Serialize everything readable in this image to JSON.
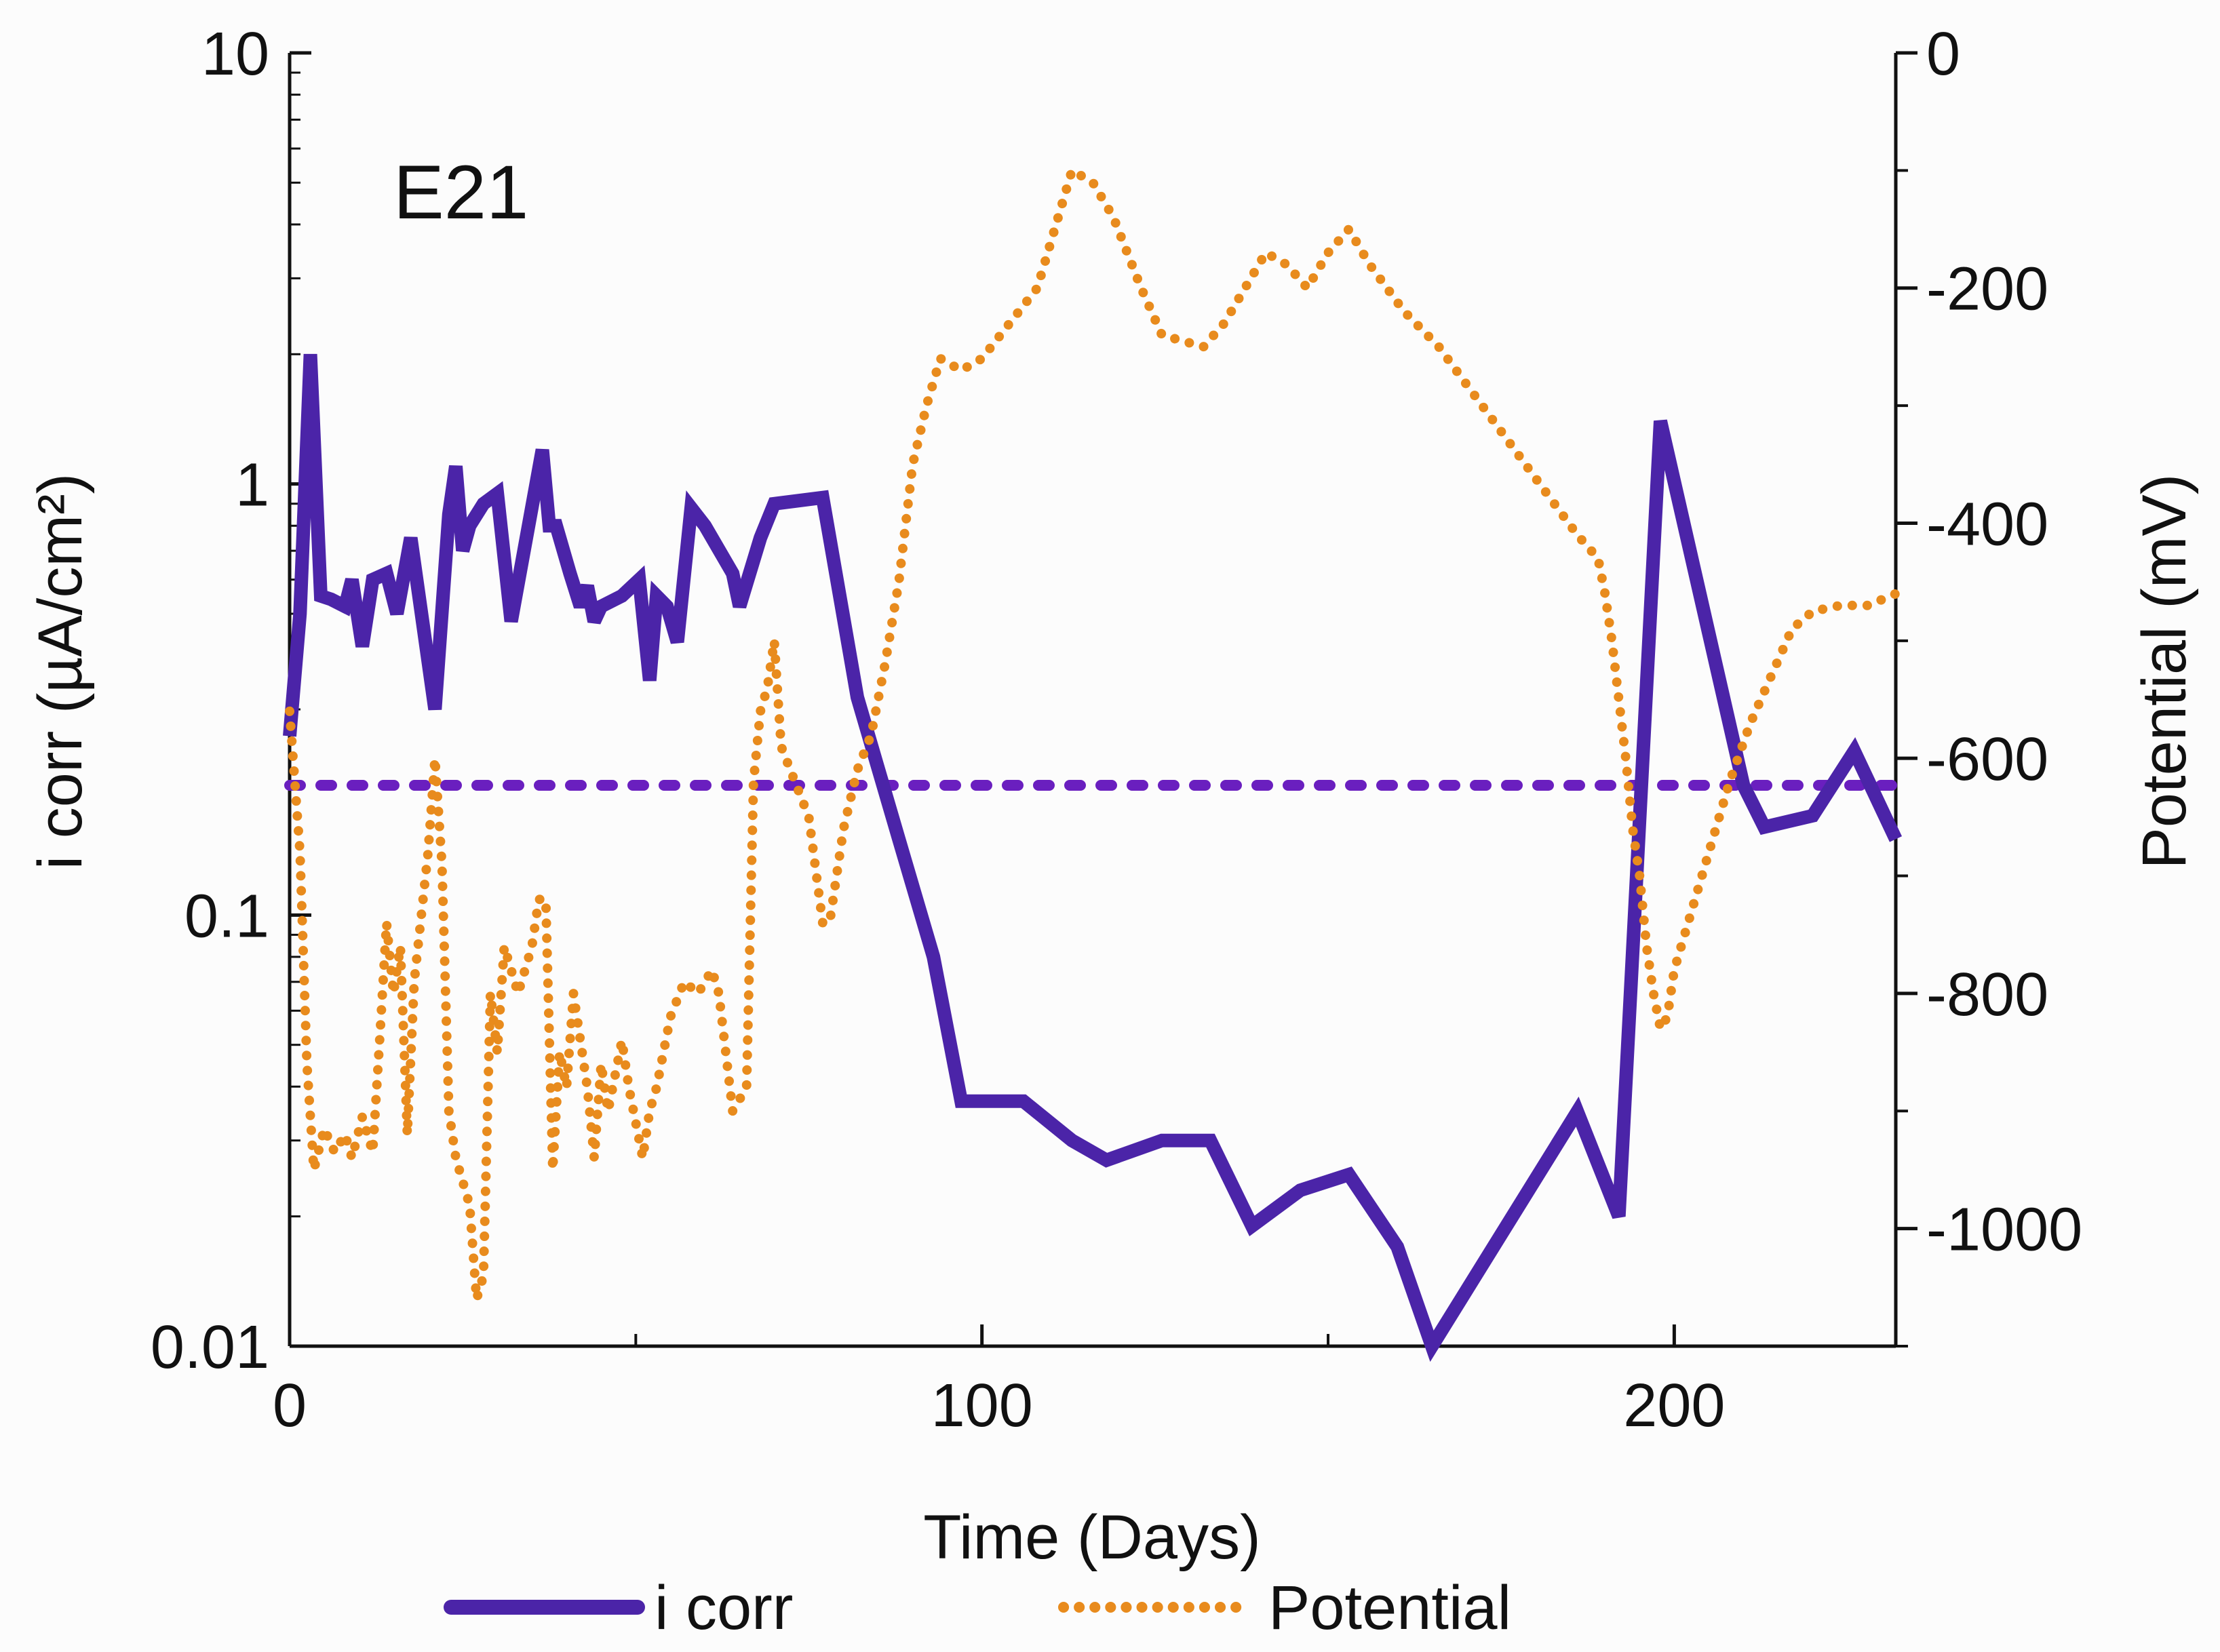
{
  "chart_data": {
    "type": "line",
    "annotation": "E21",
    "xlabel": "Time (Days)",
    "ylabel_left": "i corr (µA/cm²)",
    "ylabel_right": "Potential (mV)",
    "xlim": [
      0,
      232
    ],
    "ylim_left": [
      0.01,
      10
    ],
    "ylim_left_scale": "log",
    "ylim_right": [
      -1100,
      0
    ],
    "x_ticks": [
      0,
      100,
      200
    ],
    "y_left_ticks": [
      {
        "value": 10,
        "label": "10"
      },
      {
        "value": 1,
        "label": "1"
      },
      {
        "value": 0.1,
        "label": "0.1"
      },
      {
        "value": 0.01,
        "label": "0.01"
      }
    ],
    "y_right_ticks": [
      0,
      -200,
      -400,
      -600,
      -800,
      -1000
    ],
    "threshold": {
      "name": "threshold",
      "value": 0.2,
      "color": "#6a1fbf"
    },
    "series": [
      {
        "name": "i corr",
        "axis": "left",
        "color": "#4b24a8",
        "style": "solid",
        "points": [
          [
            0,
            0.26
          ],
          [
            1.5,
            0.5
          ],
          [
            3,
            2.0
          ],
          [
            4.5,
            0.55
          ],
          [
            6,
            0.54
          ],
          [
            8,
            0.52
          ],
          [
            9,
            0.6
          ],
          [
            10.5,
            0.42
          ],
          [
            12,
            0.6
          ],
          [
            14,
            0.62
          ],
          [
            15.5,
            0.5
          ],
          [
            17.5,
            0.75
          ],
          [
            21,
            0.3
          ],
          [
            23,
            0.85
          ],
          [
            24,
            1.1
          ],
          [
            25,
            0.7
          ],
          [
            26,
            0.8
          ],
          [
            28,
            0.9
          ],
          [
            30,
            0.95
          ],
          [
            32,
            0.48
          ],
          [
            36.5,
            1.2
          ],
          [
            37.5,
            0.8
          ],
          [
            38.5,
            0.8
          ],
          [
            40.5,
            0.62
          ],
          [
            42,
            0.52
          ],
          [
            43,
            0.58
          ],
          [
            44,
            0.48
          ],
          [
            45,
            0.52
          ],
          [
            48,
            0.55
          ],
          [
            50.5,
            0.6
          ],
          [
            52,
            0.35
          ],
          [
            53,
            0.55
          ],
          [
            54.5,
            0.52
          ],
          [
            56,
            0.43
          ],
          [
            58,
            0.88
          ],
          [
            60,
            0.8
          ],
          [
            64,
            0.62
          ],
          [
            65,
            0.52
          ],
          [
            68,
            0.75
          ],
          [
            70,
            0.9
          ],
          [
            77,
            0.93
          ],
          [
            82,
            0.32
          ],
          [
            88,
            0.15
          ],
          [
            93,
            0.08
          ],
          [
            97,
            0.037
          ],
          [
            106,
            0.037
          ],
          [
            113,
            0.03
          ],
          [
            118,
            0.027
          ],
          [
            126,
            0.03
          ],
          [
            133,
            0.03
          ],
          [
            139,
            0.019
          ],
          [
            146,
            0.023
          ],
          [
            153,
            0.025
          ],
          [
            160,
            0.017
          ],
          [
            165,
            0.01
          ],
          [
            186,
            0.035
          ],
          [
            192,
            0.02
          ],
          [
            198,
            1.4
          ],
          [
            210,
            0.2
          ],
          [
            213,
            0.16
          ],
          [
            220,
            0.17
          ],
          [
            226,
            0.24
          ],
          [
            232,
            0.15
          ]
        ]
      },
      {
        "name": "Potential",
        "axis": "right",
        "color": "#e88b1d",
        "style": "dotted",
        "points": [
          [
            0,
            -560
          ],
          [
            1.5,
            -680
          ],
          [
            2.5,
            -860
          ],
          [
            3.5,
            -950
          ],
          [
            5,
            -915
          ],
          [
            6.5,
            -935
          ],
          [
            8,
            -920
          ],
          [
            9,
            -940
          ],
          [
            10.5,
            -905
          ],
          [
            12,
            -935
          ],
          [
            13,
            -840
          ],
          [
            14,
            -740
          ],
          [
            15,
            -800
          ],
          [
            16,
            -760
          ],
          [
            17,
            -920
          ],
          [
            18,
            -790
          ],
          [
            20,
            -680
          ],
          [
            21,
            -600
          ],
          [
            22,
            -690
          ],
          [
            23,
            -900
          ],
          [
            24,
            -940
          ],
          [
            26,
            -980
          ],
          [
            27,
            -1060
          ],
          [
            28,
            -1040
          ],
          [
            29,
            -800
          ],
          [
            30,
            -850
          ],
          [
            31,
            -760
          ],
          [
            32,
            -780
          ],
          [
            33,
            -800
          ],
          [
            35,
            -760
          ],
          [
            36,
            -720
          ],
          [
            37,
            -720
          ],
          [
            38,
            -950
          ],
          [
            39,
            -850
          ],
          [
            40,
            -880
          ],
          [
            41,
            -800
          ],
          [
            43,
            -880
          ],
          [
            44,
            -940
          ],
          [
            45,
            -860
          ],
          [
            46,
            -900
          ],
          [
            48,
            -840
          ],
          [
            49,
            -880
          ],
          [
            51,
            -940
          ],
          [
            52,
            -900
          ],
          [
            53,
            -880
          ],
          [
            55,
            -820
          ],
          [
            57,
            -790
          ],
          [
            59,
            -800
          ],
          [
            61,
            -780
          ],
          [
            62,
            -800
          ],
          [
            64,
            -900
          ],
          [
            66,
            -880
          ],
          [
            67,
            -620
          ],
          [
            68,
            -560
          ],
          [
            69,
            -540
          ],
          [
            70,
            -500
          ],
          [
            71,
            -590
          ],
          [
            73,
            -620
          ],
          [
            75,
            -650
          ],
          [
            77,
            -740
          ],
          [
            78,
            -740
          ],
          [
            80,
            -660
          ],
          [
            82,
            -610
          ],
          [
            84,
            -580
          ],
          [
            86,
            -520
          ],
          [
            88,
            -450
          ],
          [
            90,
            -350
          ],
          [
            92,
            -300
          ],
          [
            94,
            -260
          ],
          [
            97,
            -270
          ],
          [
            100,
            -260
          ],
          [
            104,
            -230
          ],
          [
            108,
            -200
          ],
          [
            111,
            -140
          ],
          [
            113,
            -100
          ],
          [
            116,
            -110
          ],
          [
            119,
            -140
          ],
          [
            123,
            -200
          ],
          [
            126,
            -240
          ],
          [
            129,
            -245
          ],
          [
            132,
            -250
          ],
          [
            135,
            -230
          ],
          [
            138,
            -200
          ],
          [
            141,
            -170
          ],
          [
            144,
            -180
          ],
          [
            147,
            -200
          ],
          [
            150,
            -170
          ],
          [
            153,
            -150
          ],
          [
            156,
            -180
          ],
          [
            161,
            -220
          ],
          [
            166,
            -250
          ],
          [
            171,
            -290
          ],
          [
            176,
            -330
          ],
          [
            181,
            -370
          ],
          [
            186,
            -410
          ],
          [
            189,
            -430
          ],
          [
            190,
            -460
          ],
          [
            191,
            -500
          ],
          [
            193,
            -600
          ],
          [
            194,
            -660
          ],
          [
            195,
            -700
          ],
          [
            196,
            -760
          ],
          [
            197,
            -800
          ],
          [
            198,
            -830
          ],
          [
            199,
            -820
          ],
          [
            200,
            -780
          ],
          [
            202,
            -740
          ],
          [
            205,
            -680
          ],
          [
            208,
            -620
          ],
          [
            211,
            -570
          ],
          [
            214,
            -530
          ],
          [
            217,
            -490
          ],
          [
            220,
            -475
          ],
          [
            224,
            -470
          ],
          [
            228,
            -470
          ],
          [
            232,
            -460
          ]
        ]
      }
    ],
    "legend": [
      {
        "label": "i corr",
        "color": "#4b24a8",
        "style": "solid"
      },
      {
        "label": "Potential",
        "color": "#e88b1d",
        "style": "dotted"
      }
    ]
  }
}
